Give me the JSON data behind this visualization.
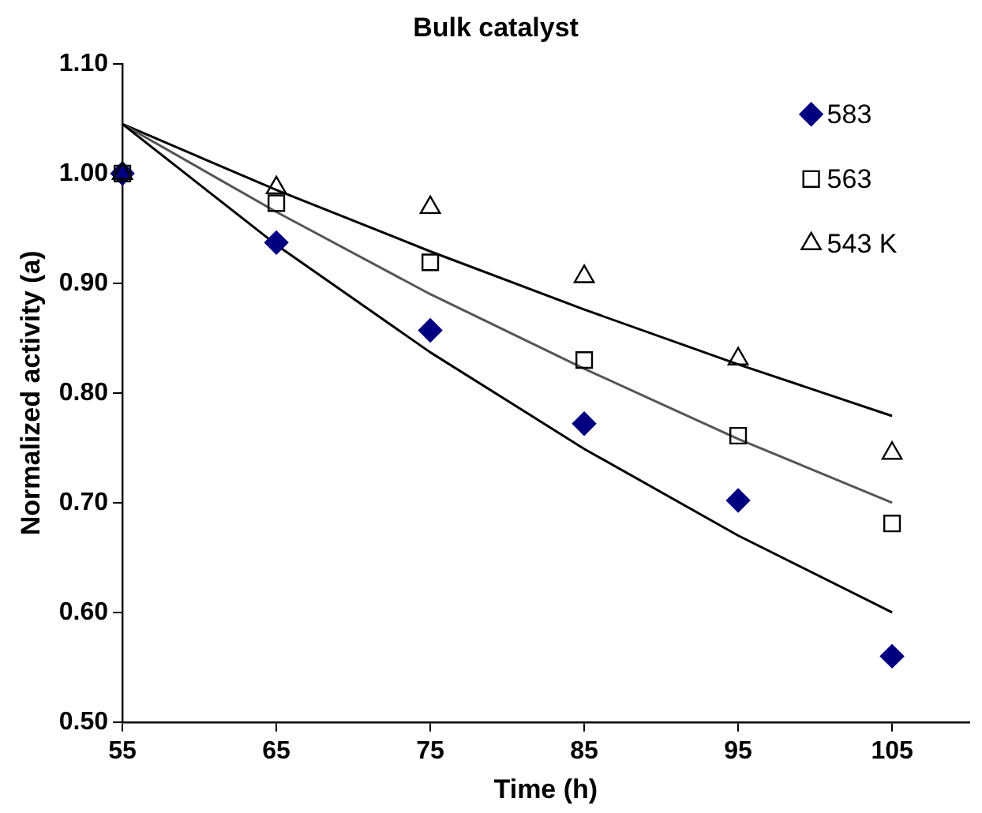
{
  "chart_data": {
    "type": "scatter",
    "title": "Bulk catalyst",
    "xlabel": "Time (h)",
    "ylabel": "Normalized activity (a)",
    "x": [
      55,
      65,
      75,
      85,
      95,
      105
    ],
    "series": [
      {
        "name": "583",
        "color": "#000080",
        "marker": "diamond",
        "values": [
          1.0,
          0.937,
          0.857,
          0.772,
          0.702,
          0.56
        ]
      },
      {
        "name": "563",
        "color": "#000000",
        "marker": "square",
        "values": [
          1.0,
          0.973,
          0.919,
          0.83,
          0.761,
          0.681
        ]
      },
      {
        "name": "543 K",
        "color": "#000000",
        "marker": "triangle",
        "values": [
          1.0,
          0.987,
          0.969,
          0.906,
          0.831,
          0.745
        ]
      },
      {
        "type": "line",
        "color": "#000000",
        "values": [
          1.045,
          0.935,
          0.837,
          0.749,
          0.67,
          0.6
        ]
      },
      {
        "type": "line",
        "color": "#555555",
        "values": [
          1.045,
          0.965,
          0.89,
          0.822,
          0.758,
          0.7
        ]
      },
      {
        "type": "line",
        "color": "#000000",
        "values": [
          1.045,
          0.985,
          0.929,
          0.876,
          0.826,
          0.779
        ]
      }
    ],
    "xlim": [
      55,
      110
    ],
    "xticks": [
      55,
      65,
      75,
      85,
      95,
      105
    ],
    "ylim": [
      0.5,
      1.1
    ],
    "yticks": [
      {
        "value": 0.5,
        "label": "0.50"
      },
      {
        "value": 0.6,
        "label": "0.60"
      },
      {
        "value": 0.7,
        "label": "0.70"
      },
      {
        "value": 0.8,
        "label": "0.80"
      },
      {
        "value": 0.9,
        "label": "0.90"
      },
      {
        "value": 1.0,
        "label": "1.00"
      },
      {
        "value": 1.1,
        "label": "1.10"
      }
    ],
    "grid": false,
    "legend": "top right"
  }
}
